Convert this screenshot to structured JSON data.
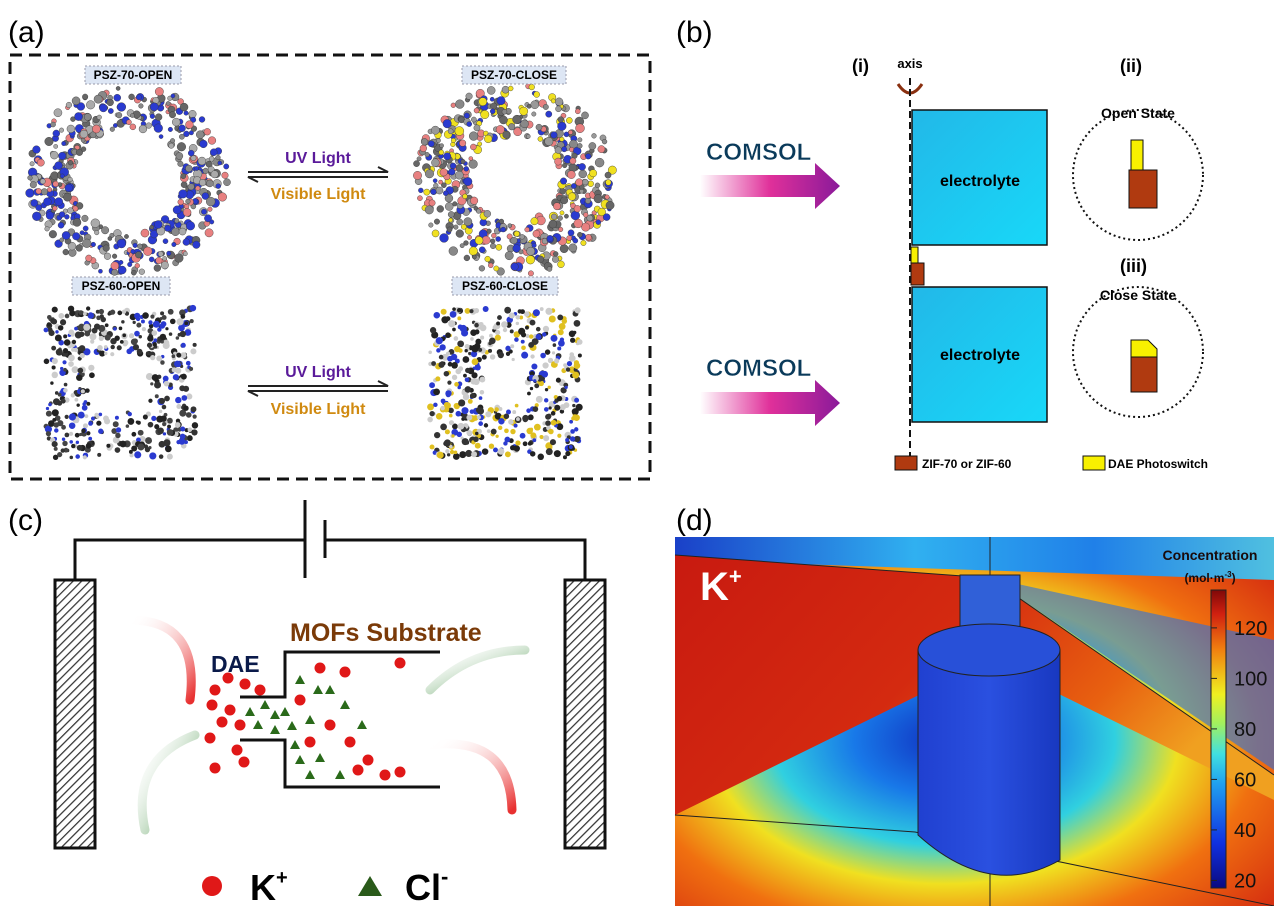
{
  "panel_a": {
    "label": "(a)",
    "top_left": "PSZ-70-OPEN",
    "top_right": "PSZ-70-CLOSE",
    "top_forward": "UV Light",
    "top_back": "Visible Light",
    "bottom_left": "PSZ-60-OPEN",
    "bottom_right": "PSZ-60-CLOSE",
    "bottom_forward": "UV Light",
    "bottom_back": "Visible Light"
  },
  "panel_b": {
    "label": "(i)",
    "panel": "(b)",
    "axis": "axis",
    "open_label": "(ii)",
    "close_label": "(iii)",
    "software_top": "COMSOL",
    "software_bottom": "COMSOL",
    "region_top": "electrolyte",
    "region_bottom": "electrolyte",
    "open_state": "Open State",
    "close_state": "Close State",
    "legend": [
      "ZIF-70 or ZIF-60",
      "DAE Photoswitch"
    ]
  },
  "panel_c": {
    "label": "(c)",
    "substrate": "MOFs Substrate",
    "dae": "DAE",
    "cation": {
      "base": "K",
      "sup": "+"
    },
    "anion": {
      "base": "Cl",
      "sup": "-"
    }
  },
  "panel_d": {
    "label": "(d)",
    "species": {
      "base": "K",
      "sup": "+"
    },
    "colorbar_title": "Concentration",
    "colorbar_unit": {
      "base": "(mol·m",
      "sup": "-3",
      "end": ")"
    },
    "colorbar_lim": [
      17,
      135
    ],
    "colorbar_ticks": [
      20,
      40,
      60,
      80,
      100,
      120
    ]
  }
}
